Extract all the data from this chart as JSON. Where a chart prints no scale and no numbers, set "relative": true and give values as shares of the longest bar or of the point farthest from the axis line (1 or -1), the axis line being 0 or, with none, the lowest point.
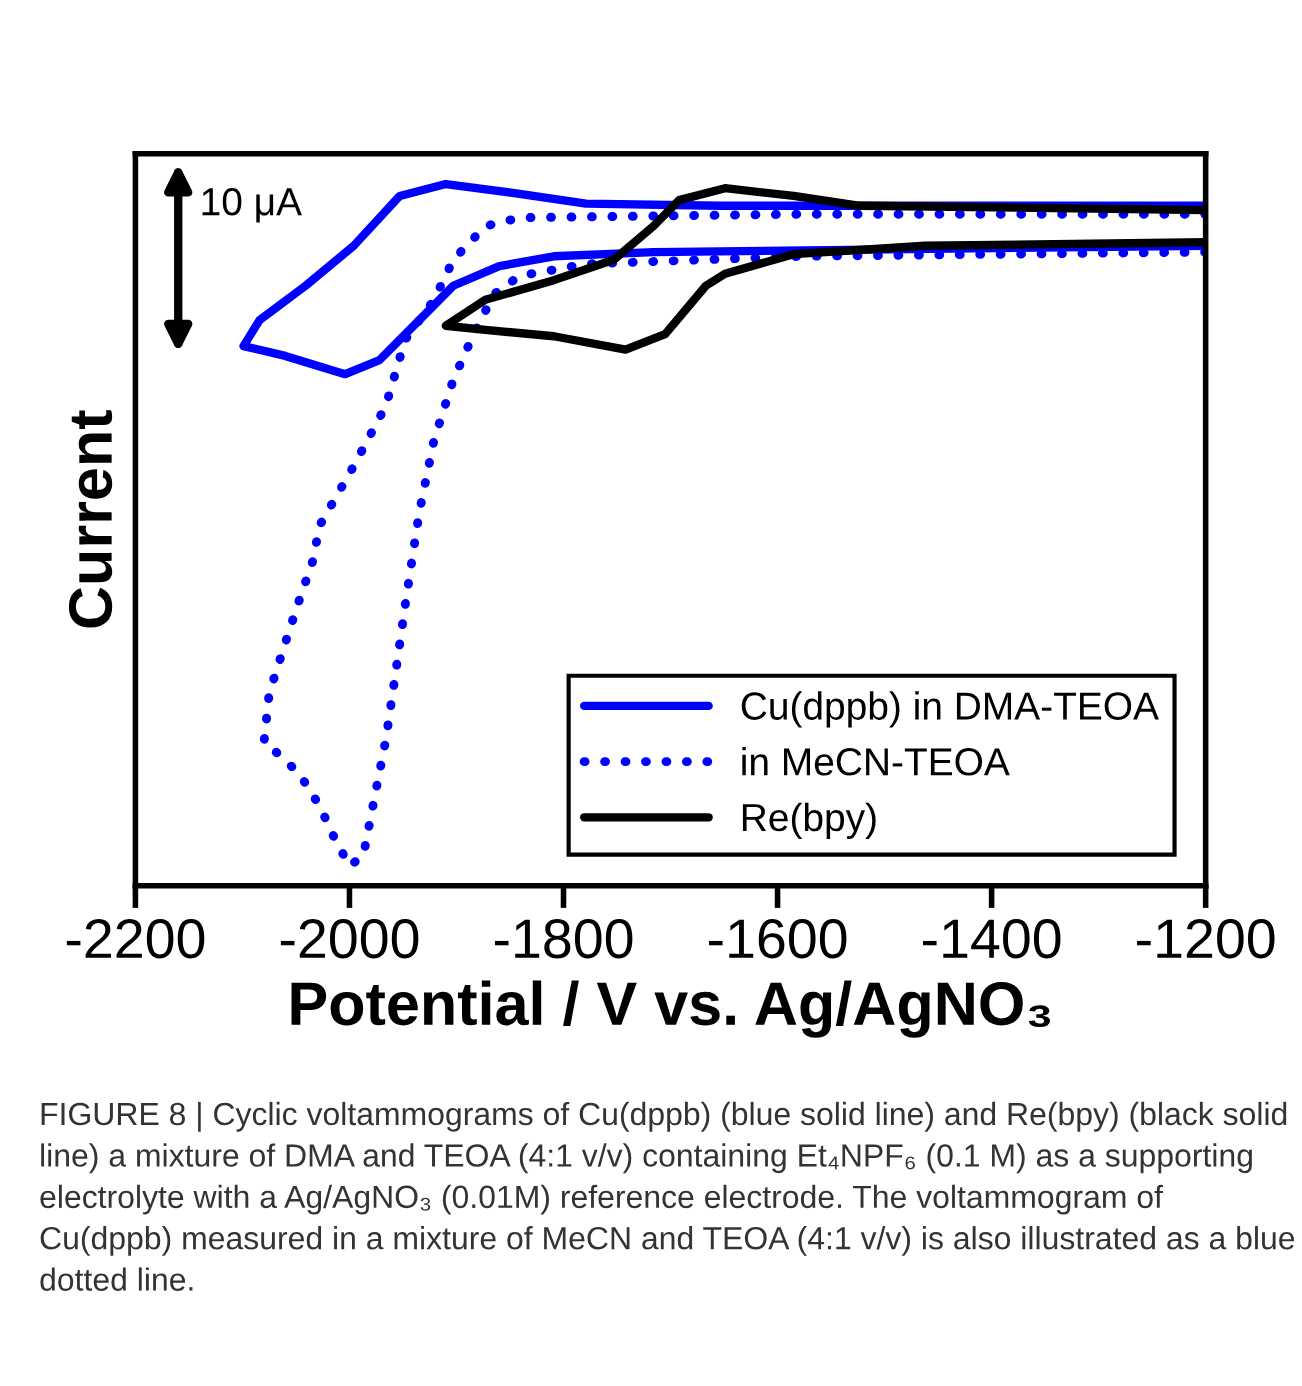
{
  "chart_data": {
    "type": "line",
    "relative": true,
    "xlabel": "Potential / V vs. Ag/AgNO₃",
    "ylabel": "Current",
    "xlim": [
      -2200,
      -1200
    ],
    "xticks": [
      -2200,
      -2000,
      -1800,
      -1600,
      -1400,
      -1200
    ],
    "legend": "bottom right",
    "marker": "none",
    "grid": false,
    "series": [
      {
        "name": "Cu(dppb) in DMA-TEOA",
        "color": "#0000ff",
        "line_style": "solid",
        "x": [
          -1200,
          -1654,
          -1779,
          -1841,
          -1910,
          -1953,
          -1996,
          -2041,
          -2084,
          -2099,
          -2060,
          -2004,
          -1972,
          -1940,
          -1903,
          -1860,
          -1809,
          -1716,
          -1200
        ],
        "values": [
          0.969,
          0.969,
          0.972,
          0.986,
          1.0,
          0.983,
          0.912,
          0.855,
          0.806,
          0.769,
          0.755,
          0.729,
          0.749,
          0.798,
          0.855,
          0.883,
          0.897,
          0.903,
          0.912
        ]
      },
      {
        "name": "in MeCN-TEOA",
        "color": "#0000ff",
        "line_style": "dotted",
        "x": [
          -1200,
          -1579,
          -1841,
          -1873,
          -1903,
          -1921,
          -1948,
          -1966,
          -1996,
          -2028,
          -2034,
          -2050,
          -2065,
          -2075,
          -2080,
          -2069,
          -2047,
          -2028,
          -2015,
          -2000,
          -1987,
          -1978,
          -1966,
          -1957,
          -1948,
          -1935,
          -1921,
          -1903,
          -1884,
          -1865,
          -1841,
          -1779,
          -1579,
          -1200
        ],
        "values": [
          0.957,
          0.957,
          0.952,
          0.94,
          0.892,
          0.835,
          0.778,
          0.684,
          0.598,
          0.513,
          0.464,
          0.393,
          0.322,
          0.274,
          0.202,
          0.191,
          0.16,
          0.114,
          0.071,
          0.028,
          0.043,
          0.114,
          0.208,
          0.302,
          0.399,
          0.53,
          0.635,
          0.721,
          0.786,
          0.843,
          0.869,
          0.886,
          0.897,
          0.903
        ]
      },
      {
        "name": "Re(bpy)",
        "color": "#000000",
        "line_style": "solid",
        "x": [
          -1200,
          -1523,
          -1585,
          -1649,
          -1692,
          -1716,
          -1753,
          -1809,
          -1873,
          -1910,
          -1873,
          -1809,
          -1742,
          -1705,
          -1667,
          -1649,
          -1585,
          -1462,
          -1200
        ],
        "values": [
          0.963,
          0.969,
          0.983,
          0.994,
          0.977,
          0.94,
          0.892,
          0.863,
          0.835,
          0.798,
          0.792,
          0.783,
          0.764,
          0.786,
          0.855,
          0.872,
          0.9,
          0.912,
          0.917
        ]
      }
    ],
    "annotations": [
      "10 μA",
      "FIGURE 8 | Cyclic voltammograms of Cu(dppb) (blue solid line) and Re(bpy) (black solid line) a mixture of DMA and TEOA (4:1 v/v) containing Et₄NPF₆ (0.1 M) as a supporting electrolyte with a Ag/AgNO₃ (0.01M) reference electrode. The voltammogram of Cu(dppb) measured in a mixture of MeCN and TEOA (4:1 v/v) is also illustrated as a blue dotted line."
    ]
  }
}
